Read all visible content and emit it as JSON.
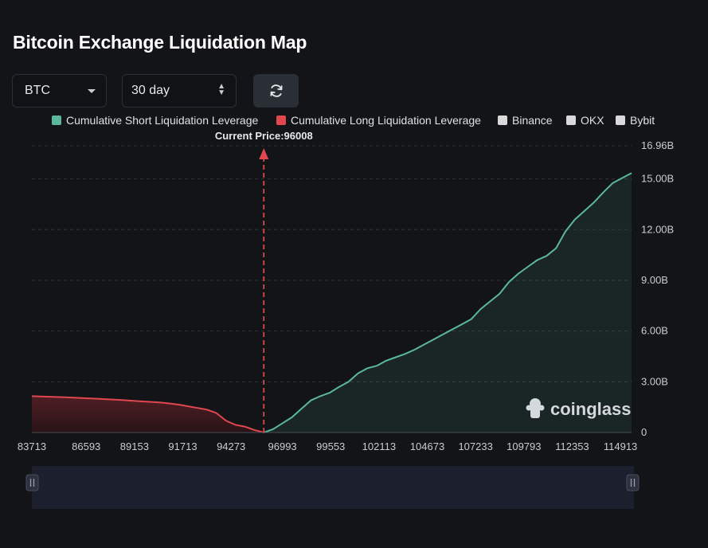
{
  "title": "Bitcoin Exchange Liquidation Map",
  "controls": {
    "coin": "BTC",
    "period": "30 day",
    "refresh_icon": "refresh-icon"
  },
  "legend": [
    {
      "label": "Cumulative Short Liquidation Leverage",
      "color": "#5bb99a"
    },
    {
      "label": "Cumulative Long Liquidation Leverage",
      "color": "#e0474f"
    },
    {
      "label": "Binance",
      "color": "#d9d9d9"
    },
    {
      "label": "OKX",
      "color": "#d9d9d9"
    },
    {
      "label": "Bybit",
      "color": "#d9d9d9"
    }
  ],
  "watermark": "coinglass",
  "chart_data": {
    "type": "area",
    "title": "Bitcoin Exchange Liquidation Map",
    "current_price": 96008,
    "current_price_label": "Current Price:96008",
    "xlim": [
      83713,
      115500
    ],
    "ylim": [
      0,
      16.96
    ],
    "y_unit": "B",
    "x_tick_labels": [
      "83713",
      "86593",
      "89153",
      "91713",
      "94273",
      "96993",
      "99553",
      "102113",
      "104673",
      "107233",
      "109793",
      "112353",
      "114913"
    ],
    "x_tick_values": [
      83713,
      86593,
      89153,
      91713,
      94273,
      96993,
      99553,
      102113,
      104673,
      107233,
      109793,
      112353,
      114913
    ],
    "y_tick_labels": [
      "0",
      "3.00B",
      "6.00B",
      "9.00B",
      "12.00B",
      "15.00B",
      "16.96B"
    ],
    "y_tick_values": [
      0,
      3,
      6,
      9,
      12,
      15,
      16.96
    ],
    "grid": "horizontal-dashed",
    "series": [
      {
        "name": "Cumulative Short Liquidation Leverage",
        "color": "#5bb99a",
        "x": [
          96008,
          96500,
          97000,
          97500,
          98000,
          98500,
          99000,
          99500,
          100000,
          100500,
          101000,
          101500,
          102000,
          102500,
          103000,
          103500,
          104000,
          104500,
          105000,
          105500,
          106000,
          106500,
          107000,
          107500,
          108000,
          108500,
          109000,
          109500,
          110000,
          110500,
          111000,
          111500,
          112000,
          112500,
          113000,
          113500,
          114000,
          114500,
          115000,
          115500
        ],
        "y": [
          0.0,
          0.2,
          0.55,
          0.9,
          1.4,
          1.9,
          2.15,
          2.35,
          2.7,
          3.0,
          3.5,
          3.8,
          3.95,
          4.25,
          4.45,
          4.65,
          4.9,
          5.2,
          5.5,
          5.8,
          6.1,
          6.4,
          6.7,
          7.3,
          7.75,
          8.2,
          8.9,
          9.4,
          9.8,
          10.2,
          10.45,
          10.9,
          11.9,
          12.6,
          13.1,
          13.6,
          14.2,
          14.75,
          15.05,
          15.35
        ]
      },
      {
        "name": "Cumulative Long Liquidation Leverage",
        "color": "#e0474f",
        "x": [
          83713,
          84500,
          85500,
          86500,
          87500,
          88500,
          89500,
          90500,
          91000,
          91500,
          92000,
          92500,
          93000,
          93500,
          94000,
          94500,
          95000,
          95500,
          96008
        ],
        "y": [
          2.15,
          2.12,
          2.08,
          2.03,
          1.98,
          1.92,
          1.84,
          1.78,
          1.72,
          1.65,
          1.55,
          1.45,
          1.35,
          1.15,
          0.7,
          0.45,
          0.35,
          0.15,
          0.0
        ]
      }
    ]
  }
}
